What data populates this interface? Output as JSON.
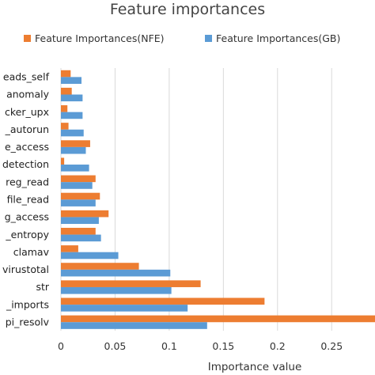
{
  "chart_data": {
    "type": "bar",
    "orientation": "horizontal",
    "title": "Feature importances",
    "xlabel": "Importance value",
    "ylabel": "",
    "xlim": [
      0,
      0.29
    ],
    "xticks": [
      "0",
      "0.05",
      "0.1",
      "0.15",
      "0.2",
      "0.25"
    ],
    "xtick_values": [
      0,
      0.05,
      0.1,
      0.15,
      0.2,
      0.25
    ],
    "grid": true,
    "legend_position": "top",
    "categories": [
      "eads_self",
      "anomaly",
      "cker_upx",
      "_autorun",
      "e_access",
      "detection",
      "reg_read",
      "file_read",
      "g_access",
      "_entropy",
      "clamav",
      "virustotal",
      "str",
      "_imports",
      "pi_resolv"
    ],
    "series": [
      {
        "name": "Feature Importances(NFE)",
        "color": "#ed7d31",
        "values": [
          0.009,
          0.01,
          0.006,
          0.007,
          0.027,
          0.003,
          0.032,
          0.036,
          0.044,
          0.032,
          0.016,
          0.072,
          0.129,
          0.188,
          0.29
        ]
      },
      {
        "name": "Feature Importances(GB)",
        "color": "#5b9bd5",
        "values": [
          0.019,
          0.02,
          0.02,
          0.021,
          0.023,
          0.026,
          0.029,
          0.032,
          0.035,
          0.037,
          0.053,
          0.101,
          0.102,
          0.117,
          0.135
        ]
      }
    ]
  }
}
